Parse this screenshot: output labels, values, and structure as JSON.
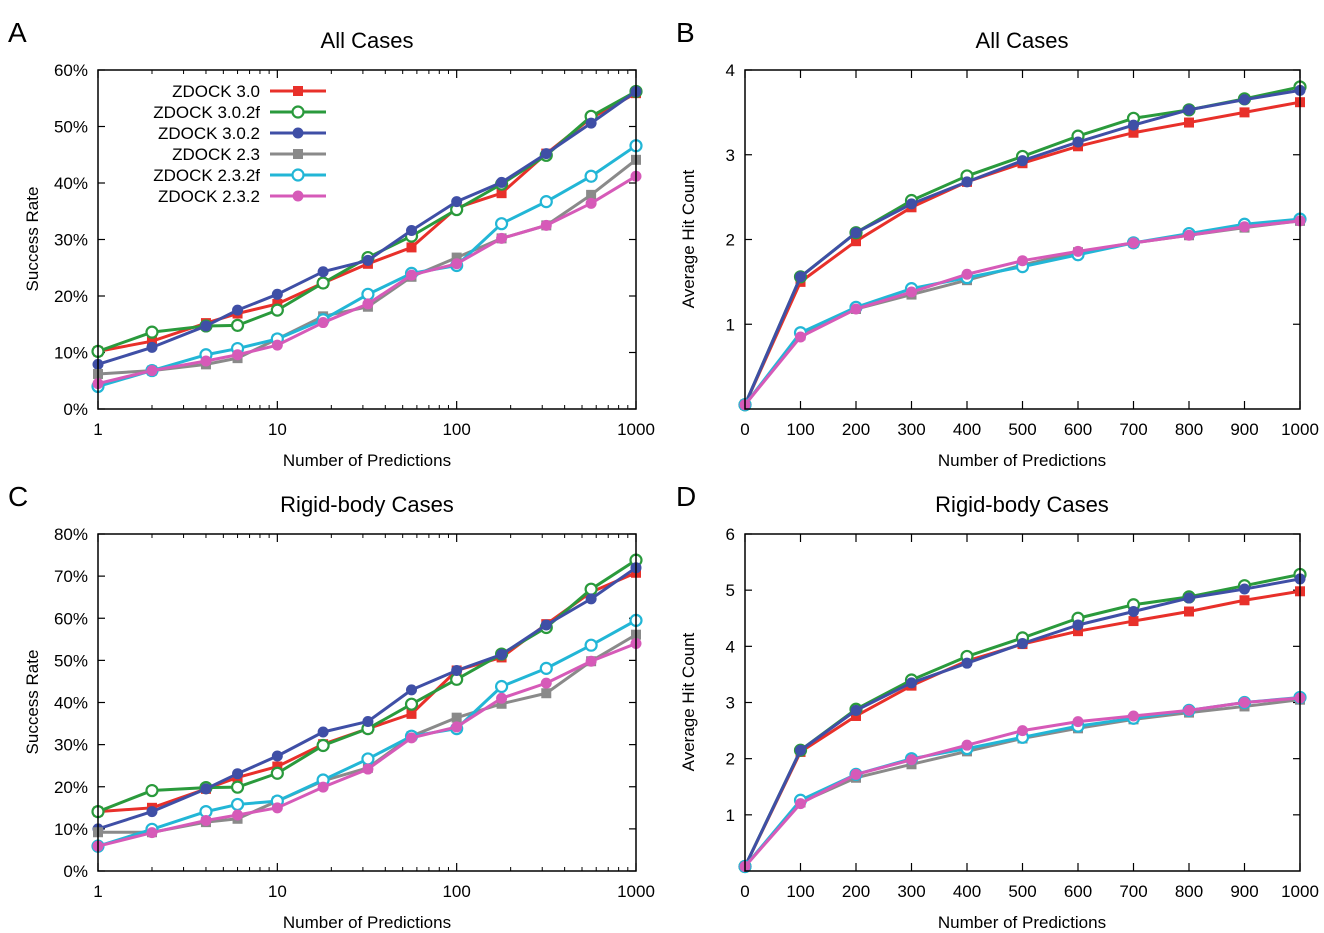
{
  "legend": {
    "entries": [
      {
        "label": "ZDOCK 3.0",
        "color": "#e8302a",
        "marker": "square-filled"
      },
      {
        "label": "ZDOCK 3.0.2f",
        "color": "#2a9a3c",
        "marker": "circle-open"
      },
      {
        "label": "ZDOCK 3.0.2",
        "color": "#3f4fa6",
        "marker": "circle-filled"
      },
      {
        "label": "ZDOCK 2.3",
        "color": "#8a8a8a",
        "marker": "square-filled"
      },
      {
        "label": "ZDOCK 2.3.2f",
        "color": "#22b6d6",
        "marker": "circle-open"
      },
      {
        "label": "ZDOCK 2.3.2",
        "color": "#d65ab8",
        "marker": "circle-filled"
      }
    ]
  },
  "chart_data": [
    {
      "panel": "A",
      "type": "line",
      "title": "All Cases",
      "xlabel": "Number of Predictions",
      "ylabel": "Success Rate",
      "x_scale": "log",
      "xlim": [
        1,
        1000
      ],
      "ylim": [
        0,
        60
      ],
      "x_ticks": [
        "1",
        "10",
        "100",
        "1000"
      ],
      "y_ticks": [
        "0%",
        "10%",
        "20%",
        "30%",
        "40%",
        "50%",
        "60%"
      ],
      "legend_position": "top-left",
      "x": [
        1,
        2,
        4,
        6,
        10,
        18,
        32,
        56,
        100,
        178,
        316,
        562,
        1000
      ],
      "series": [
        {
          "name": "ZDOCK 3.0",
          "values": [
            10.2,
            12,
            15.2,
            16.9,
            18.6,
            22.3,
            25.7,
            28.6,
            35.6,
            38.2,
            45.2,
            51.5,
            55.9
          ]
        },
        {
          "name": "ZDOCK 3.0.2f",
          "values": [
            10.2,
            13.6,
            14.7,
            14.8,
            17.5,
            22.3,
            26.8,
            30.6,
            35.3,
            39.8,
            44.9,
            51.8,
            56.2
          ]
        },
        {
          "name": "ZDOCK 3.0.2",
          "values": [
            7.9,
            10.9,
            14.7,
            17.5,
            20.3,
            24.3,
            26.3,
            31.6,
            36.7,
            40.1,
            45.2,
            50.6,
            56.2
          ]
        },
        {
          "name": "ZDOCK 2.3",
          "values": [
            6.2,
            6.8,
            7.9,
            9.0,
            12.4,
            16.4,
            18.1,
            23.4,
            26.8,
            30.2,
            32.5,
            37.9,
            44.1
          ]
        },
        {
          "name": "ZDOCK 2.3.2f",
          "values": [
            4.0,
            6.8,
            9.6,
            10.7,
            12.4,
            15.8,
            20.3,
            24.0,
            25.4,
            32.8,
            36.7,
            41.2,
            46.6
          ]
        },
        {
          "name": "ZDOCK 2.3.2",
          "values": [
            4.5,
            6.8,
            8.5,
            9.6,
            11.3,
            15.3,
            18.6,
            23.7,
            25.7,
            30.2,
            32.5,
            36.4,
            41.2
          ]
        }
      ]
    },
    {
      "panel": "B",
      "type": "line",
      "title": "All Cases",
      "xlabel": "Number of Predictions",
      "ylabel": "Average Hit Count",
      "x_scale": "linear",
      "xlim": [
        0,
        1000
      ],
      "ylim": [
        0,
        4
      ],
      "x_ticks": [
        "0",
        "100",
        "200",
        "300",
        "400",
        "500",
        "600",
        "700",
        "800",
        "900",
        "1000"
      ],
      "y_ticks": [
        "1",
        "2",
        "3",
        "4"
      ],
      "x": [
        0,
        100,
        200,
        300,
        400,
        500,
        600,
        700,
        800,
        900,
        1000
      ],
      "series": [
        {
          "name": "ZDOCK 3.0",
          "values": [
            0.05,
            1.5,
            1.98,
            2.38,
            2.68,
            2.9,
            3.1,
            3.26,
            3.38,
            3.5,
            3.62
          ]
        },
        {
          "name": "ZDOCK 3.0.2f",
          "values": [
            0.05,
            1.56,
            2.08,
            2.46,
            2.75,
            2.98,
            3.22,
            3.43,
            3.53,
            3.66,
            3.8
          ]
        },
        {
          "name": "ZDOCK 3.0.2",
          "values": [
            0.05,
            1.56,
            2.08,
            2.42,
            2.68,
            2.93,
            3.15,
            3.35,
            3.53,
            3.65,
            3.76
          ]
        },
        {
          "name": "ZDOCK 2.3",
          "values": [
            0.05,
            0.87,
            1.18,
            1.35,
            1.52,
            1.7,
            1.85,
            1.96,
            2.05,
            2.14,
            2.22
          ]
        },
        {
          "name": "ZDOCK 2.3.2f",
          "values": [
            0.05,
            0.9,
            1.2,
            1.42,
            1.55,
            1.68,
            1.82,
            1.96,
            2.07,
            2.18,
            2.24
          ]
        },
        {
          "name": "ZDOCK 2.3.2",
          "values": [
            0.05,
            0.85,
            1.18,
            1.38,
            1.59,
            1.75,
            1.86,
            1.96,
            2.05,
            2.15,
            2.22
          ]
        }
      ]
    },
    {
      "panel": "C",
      "type": "line",
      "title": "Rigid-body Cases",
      "xlabel": "Number of Predictions",
      "ylabel": "Success Rate",
      "x_scale": "log",
      "xlim": [
        1,
        1000
      ],
      "ylim": [
        0,
        80
      ],
      "x_ticks": [
        "1",
        "10",
        "100",
        "1000"
      ],
      "y_ticks": [
        "0%",
        "10%",
        "20%",
        "30%",
        "40%",
        "50%",
        "60%",
        "70%",
        "80%"
      ],
      "x": [
        1,
        2,
        4,
        6,
        10,
        18,
        32,
        56,
        100,
        178,
        316,
        562,
        1000
      ],
      "series": [
        {
          "name": "ZDOCK 3.0",
          "values": [
            14.1,
            15.0,
            19.5,
            22.2,
            24.8,
            30.1,
            33.8,
            37.3,
            47.6,
            50.7,
            58.6,
            66.2,
            70.8
          ]
        },
        {
          "name": "ZDOCK 3.0.2f",
          "values": [
            14.1,
            19.1,
            19.8,
            19.9,
            23.2,
            29.8,
            33.8,
            39.6,
            45.5,
            51.5,
            57.8,
            66.9,
            73.8
          ]
        },
        {
          "name": "ZDOCK 3.0.2",
          "values": [
            10.0,
            14.1,
            19.5,
            23.1,
            27.3,
            33.0,
            35.5,
            43.0,
            47.6,
            51.4,
            58.4,
            64.6,
            72.0
          ]
        },
        {
          "name": "ZDOCK 2.3",
          "values": [
            9.2,
            9.2,
            11.6,
            12.4,
            16.6,
            21.4,
            24.5,
            32.0,
            36.4,
            39.7,
            42.2,
            49.8,
            56.1
          ]
        },
        {
          "name": "ZDOCK 2.3.2f",
          "values": [
            5.9,
            9.9,
            14.1,
            15.8,
            16.6,
            21.6,
            26.6,
            32.0,
            33.8,
            43.8,
            48.1,
            53.6,
            59.5
          ]
        },
        {
          "name": "ZDOCK 2.3.2",
          "values": [
            5.9,
            9.1,
            12.0,
            13.3,
            15.0,
            19.9,
            24.2,
            31.6,
            34.2,
            41.0,
            44.6,
            49.8,
            54.0
          ]
        }
      ]
    },
    {
      "panel": "D",
      "type": "line",
      "title": "Rigid-body Cases",
      "xlabel": "Number of Predictions",
      "ylabel": "Average Hit Count",
      "x_scale": "linear",
      "xlim": [
        0,
        1000
      ],
      "ylim": [
        0,
        6
      ],
      "x_ticks": [
        "0",
        "100",
        "200",
        "300",
        "400",
        "500",
        "600",
        "700",
        "800",
        "900",
        "1000"
      ],
      "y_ticks": [
        "1",
        "2",
        "3",
        "4",
        "5",
        "6"
      ],
      "x": [
        0,
        100,
        200,
        300,
        400,
        500,
        600,
        700,
        800,
        900,
        1000
      ],
      "series": [
        {
          "name": "ZDOCK 3.0",
          "values": [
            0.08,
            2.12,
            2.76,
            3.3,
            3.74,
            4.04,
            4.27,
            4.45,
            4.62,
            4.82,
            4.98
          ]
        },
        {
          "name": "ZDOCK 3.0.2f",
          "values": [
            0.08,
            2.15,
            2.88,
            3.4,
            3.82,
            4.15,
            4.5,
            4.74,
            4.88,
            5.08,
            5.28
          ]
        },
        {
          "name": "ZDOCK 3.0.2",
          "values": [
            0.08,
            2.15,
            2.86,
            3.35,
            3.7,
            4.05,
            4.38,
            4.62,
            4.86,
            5.02,
            5.2
          ]
        },
        {
          "name": "ZDOCK 2.3",
          "values": [
            0.08,
            1.22,
            1.66,
            1.9,
            2.13,
            2.36,
            2.54,
            2.7,
            2.82,
            2.93,
            3.05
          ]
        },
        {
          "name": "ZDOCK 2.3.2f",
          "values": [
            0.08,
            1.26,
            1.72,
            2.0,
            2.18,
            2.38,
            2.58,
            2.72,
            2.86,
            3.0,
            3.09
          ]
        },
        {
          "name": "ZDOCK 2.3.2",
          "values": [
            0.08,
            1.2,
            1.72,
            1.98,
            2.24,
            2.5,
            2.66,
            2.76,
            2.86,
            3.0,
            3.08
          ]
        }
      ]
    }
  ]
}
